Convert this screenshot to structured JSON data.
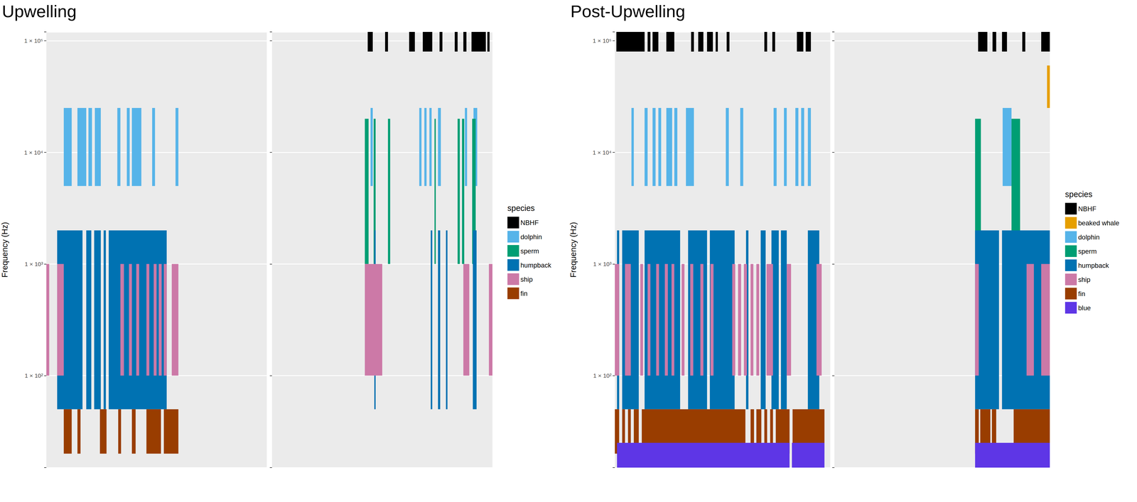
{
  "chart_data": [
    {
      "type": "range",
      "title": "Upwelling",
      "y_label": "Frequency (Hz)",
      "legend_title": "species",
      "log": "y",
      "grid": true,
      "legend": "right",
      "tick_labels": "y",
      "xlim": [
        0,
        100
      ],
      "ylim": [
        15,
        120000
      ],
      "yticks": [
        {
          "value": 100,
          "label": "1 × 10²"
        },
        {
          "value": 1000,
          "label": "1 × 10³"
        },
        {
          "value": 10000,
          "label": "1 × 10⁴"
        },
        {
          "value": 100000,
          "label": "1 × 10⁵"
        }
      ],
      "series": [
        {
          "name": "NBHF",
          "color": "#000000",
          "range": [
            80000,
            120000
          ],
          "values": [
            [],
            [
              [
                43.4,
                45.7
              ],
              [
                51.3,
                52.6
              ],
              [
                62.2,
                64.8
              ],
              [
                68.4,
                72.7
              ],
              [
                76.0,
                77.3
              ],
              [
                82.9,
                84.2
              ],
              [
                86.8,
                88.2
              ],
              [
                90.5,
                97.0
              ],
              [
                97.7,
                98.7
              ]
            ]
          ]
        },
        {
          "name": "dolphin",
          "color": "#56B4E9",
          "range": [
            5000,
            25000
          ],
          "values": [
            [
              [
                7.9,
                11.5
              ],
              [
                14.1,
                18.1
              ],
              [
                19.1,
                20.7
              ],
              [
                22.0,
                24.7
              ],
              [
                32.2,
                33.6
              ],
              [
                36.5,
                37.8
              ],
              [
                38.8,
                43.1
              ],
              [
                48.0,
                49.3
              ],
              [
                58.6,
                59.9
              ]
            ],
            [
              [
                44.7,
                45.7
              ],
              [
                66.8,
                67.8
              ],
              [
                69.1,
                70.1
              ],
              [
                71.4,
                72.4
              ],
              [
                75.3,
                76.6
              ],
              [
                87.5,
                88.5
              ],
              [
                91.4,
                93.1
              ]
            ]
          ]
        },
        {
          "name": "sperm",
          "color": "#009E73",
          "range": [
            1000,
            20000
          ],
          "values": [
            [],
            [
              [
                42.1,
                43.8
              ],
              [
                46.1,
                47.0
              ],
              [
                52.6,
                53.6
              ],
              [
                73.7,
                74.3
              ],
              [
                84.2,
                85.2
              ],
              [
                86.2,
                87.2
              ],
              [
                90.8,
                92.4
              ]
            ]
          ]
        },
        {
          "name": "humpback",
          "color": "#0072B2",
          "range": [
            50,
            2000
          ],
          "values": [
            [
              [
                4.9,
                16.4
              ],
              [
                18.1,
                20.4
              ],
              [
                21.7,
                24.7
              ],
              [
                26.0,
                27.0
              ],
              [
                28.3,
                54.6
              ]
            ],
            [
              [
                46.4,
                47.0
              ],
              [
                72.0,
                72.7
              ],
              [
                75.3,
                76.3
              ],
              [
                78.9,
                79.6
              ],
              [
                91.1,
                92.8
              ]
            ]
          ]
        },
        {
          "name": "ship",
          "color": "#CC79A7",
          "range": [
            100,
            1000
          ],
          "values": [
            [
              [
                0,
                1.3
              ],
              [
                4.9,
                7.9
              ],
              [
                33.6,
                35.2
              ],
              [
                37.5,
                38.8
              ],
              [
                40.8,
                42.1
              ],
              [
                45.4,
                46.7
              ],
              [
                48.7,
                50.0
              ],
              [
                51.0,
                52.3
              ],
              [
                53.3,
                54.6
              ],
              [
                56.9,
                59.9
              ]
            ],
            [
              [
                42.1,
                50.0
              ],
              [
                86.8,
                89.5
              ],
              [
                98.4,
                100
              ]
            ]
          ]
        },
        {
          "name": "fin",
          "color": "#993D00",
          "range": [
            20,
            50
          ],
          "values": [
            [
              [
                7.9,
                11.5
              ],
              [
                14.1,
                15.5
              ],
              [
                24.3,
                27.3
              ],
              [
                32.6,
                33.9
              ],
              [
                38.8,
                40.5
              ],
              [
                45.4,
                52.0
              ],
              [
                53.3,
                59.9
              ]
            ],
            []
          ]
        }
      ]
    },
    {
      "type": "range",
      "title": "Post-Upwelling",
      "y_label": "Frequency (Hz)",
      "legend_title": "species",
      "log": "y",
      "grid": true,
      "legend": "right",
      "tick_labels": "y",
      "xlim": [
        0,
        100
      ],
      "ylim": [
        15,
        120000
      ],
      "yticks": [
        {
          "value": 100,
          "label": "1 × 10²"
        },
        {
          "value": 1000,
          "label": "1 × 10³"
        },
        {
          "value": 10000,
          "label": "1 × 10⁴"
        },
        {
          "value": 100000,
          "label": "1 × 10⁵"
        }
      ],
      "series": [
        {
          "name": "NBHF",
          "color": "#000000",
          "range": [
            80000,
            120000
          ],
          "values": [
            [
              [
                0.7,
                13.8
              ],
              [
                15.2,
                16.5
              ],
              [
                17.5,
                20.2
              ],
              [
                23.9,
                27.6
              ],
              [
                35.4,
                36.7
              ],
              [
                38.7,
                41.1
              ],
              [
                42.8,
                45.5
              ],
              [
                46.8,
                47.8
              ],
              [
                51.9,
                53.2
              ],
              [
                69.4,
                70.7
              ],
              [
                73.1,
                74.4
              ],
              [
                84.5,
                87.5
              ],
              [
                88.6,
                91.0
              ]
            ],
            [
              [
                66.7,
                71.0
              ],
              [
                73.4,
                75.1
              ],
              [
                77.8,
                80.1
              ],
              [
                87.2,
                88.6
              ],
              [
                96.0,
                100
              ]
            ]
          ]
        },
        {
          "name": "beaked whale",
          "color": "#E69F00",
          "range": [
            25000,
            60000
          ],
          "values": [
            [],
            [
              [
                98.7,
                100
              ]
            ]
          ]
        },
        {
          "name": "dolphin",
          "color": "#56B4E9",
          "range": [
            5000,
            25000
          ],
          "values": [
            [
              [
                7.7,
                8.8
              ],
              [
                13.8,
                15.2
              ],
              [
                17.5,
                18.9
              ],
              [
                20.2,
                21.5
              ],
              [
                23.9,
                26.6
              ],
              [
                27.6,
                29.0
              ],
              [
                33.0,
                36.7
              ],
              [
                51.5,
                52.9
              ],
              [
                58.2,
                59.6
              ],
              [
                73.7,
                75.1
              ],
              [
                78.5,
                79.8
              ],
              [
                83.8,
                85.2
              ],
              [
                86.5,
                87.9
              ],
              [
                89.6,
                91.0
              ]
            ],
            [
              [
                78.1,
                82.2
              ]
            ]
          ]
        },
        {
          "name": "sperm",
          "color": "#009E73",
          "range": [
            1000,
            20000
          ],
          "values": [
            [],
            [
              [
                65.3,
                68.0
              ],
              [
                82.2,
                86.2
              ]
            ]
          ]
        },
        {
          "name": "humpback",
          "color": "#0072B2",
          "range": [
            50,
            2000
          ],
          "values": [
            [
              [
                1.0,
                2.0
              ],
              [
                3.4,
                11.1
              ],
              [
                13.8,
                30.3
              ],
              [
                34.0,
                42.8
              ],
              [
                44.1,
                55.6
              ],
              [
                60.9,
                62.0
              ],
              [
                67.7,
                70.0
              ],
              [
                72.7,
                76.1
              ],
              [
                77.1,
                79.8
              ],
              [
                89.6,
                94.9
              ]
            ],
            [
              [
                65.3,
                76.4
              ],
              [
                77.8,
                100
              ]
            ]
          ]
        },
        {
          "name": "ship",
          "color": "#CC79A7",
          "range": [
            100,
            1000
          ],
          "values": [
            [
              [
                0,
                2.0
              ],
              [
                4.7,
                7.4
              ],
              [
                11.8,
                13.1
              ],
              [
                15.2,
                16.5
              ],
              [
                19.2,
                20.5
              ],
              [
                23.2,
                24.6
              ],
              [
                26.3,
                27.6
              ],
              [
                31.0,
                32.3
              ],
              [
                35.0,
                36.4
              ],
              [
                39.7,
                41.1
              ],
              [
                44.4,
                45.8
              ],
              [
                54.5,
                55.9
              ],
              [
                57.2,
                58.6
              ],
              [
                59.9,
                61.3
              ],
              [
                63.0,
                64.3
              ],
              [
                65.7,
                67.0
              ],
              [
                70.4,
                73.4
              ],
              [
                79.8,
                81.8
              ],
              [
                93.6,
                96.0
              ]
            ],
            [
              [
                65.3,
                67.0
              ],
              [
                89.2,
                92.6
              ],
              [
                96.0,
                100
              ]
            ]
          ]
        },
        {
          "name": "fin",
          "color": "#993D00",
          "range": [
            20,
            50
          ],
          "values": [
            [
              [
                0,
                2.0
              ],
              [
                3.4,
                4.7
              ],
              [
                6.1,
                7.4
              ],
              [
                8.8,
                11.1
              ],
              [
                12.5,
                60.6
              ],
              [
                63.0,
                64.6
              ],
              [
                65.7,
                68.0
              ],
              [
                69.4,
                70.7
              ],
              [
                72.1,
                73.4
              ],
              [
                74.7,
                81.1
              ],
              [
                82.5,
                97.3
              ]
            ],
            [
              [
                65.3,
                67.0
              ],
              [
                67.7,
                72.4
              ],
              [
                73.1,
                75.1
              ],
              [
                83.2,
                100
              ]
            ]
          ]
        },
        {
          "name": "blue",
          "color": "#5E36E6",
          "range": [
            15,
            25
          ],
          "values": [
            [
              [
                1.0,
                81.1
              ],
              [
                82.2,
                97.3
              ]
            ],
            [
              [
                65.3,
                100
              ]
            ]
          ]
        }
      ]
    }
  ]
}
